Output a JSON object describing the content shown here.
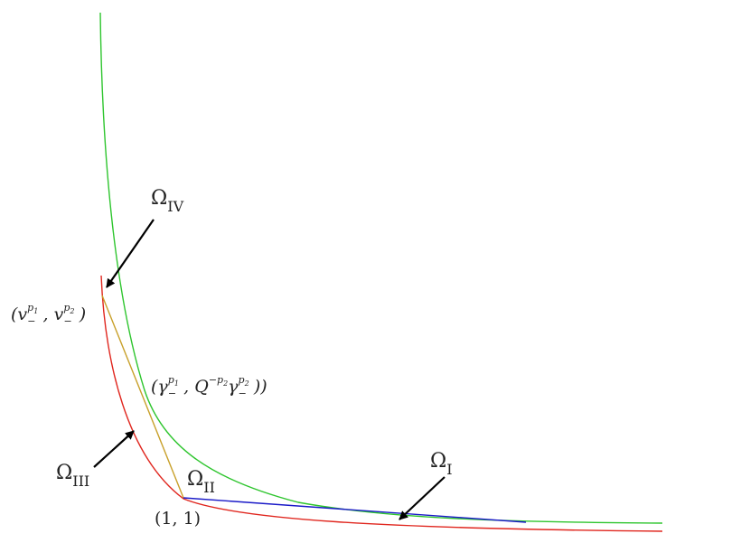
{
  "labels": {
    "omega_symbol": "Ω",
    "region_I": "I",
    "region_II": "II",
    "region_III": "III",
    "region_IV": "IV"
  },
  "points": {
    "corner": "(1, 1)",
    "upper_left_v": "v",
    "upper_left_sub": "−",
    "upper_left_p1": "p",
    "upper_left_p1_idx": "1",
    "upper_left_p2": "p",
    "upper_left_p2_idx": "2",
    "tangent_gamma": "γ",
    "tangent_Q": "Q",
    "tangent_neg_p2": "−p",
    "tangent_sub": "−"
  },
  "colors": {
    "lower_curve": "#e0261e",
    "upper_curve": "#2ec52e",
    "right_chord": "#1a1ac8",
    "left_chord": "#c8a02a",
    "arrow": "#000000"
  }
}
